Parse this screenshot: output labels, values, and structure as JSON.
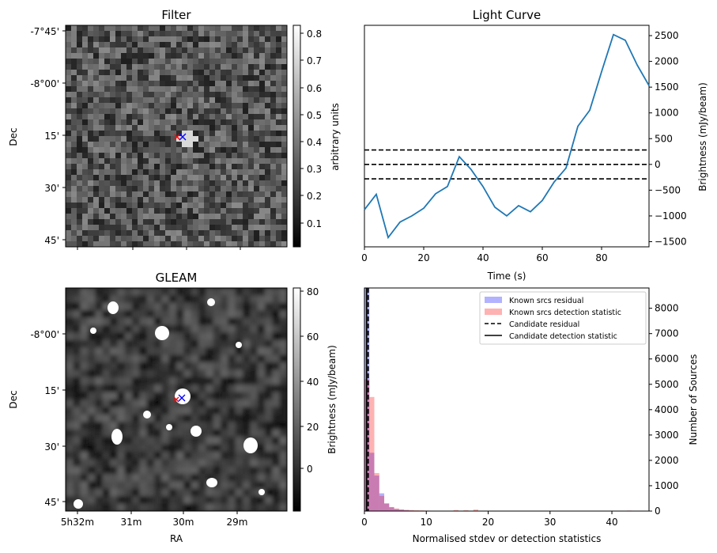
{
  "panels": {
    "filter": {
      "title": "Filter",
      "ylabel": "Dec",
      "yticks": [
        "-7°45'",
        "-8°00'",
        "15'",
        "30'",
        "45'"
      ],
      "colorbar": {
        "label": "arbitrary units",
        "ticks": [
          "0.8",
          "0.7",
          "0.6",
          "0.5",
          "0.4",
          "0.3",
          "0.2",
          "0.1"
        ],
        "range": [
          0.02,
          0.83
        ]
      },
      "markers": [
        "red-x",
        "blue-x"
      ]
    },
    "gleam": {
      "title": "GLEAM",
      "ylabel": "Dec",
      "xlabel": "RA",
      "yticks": [
        "-8°00'",
        "15'",
        "30'",
        "45'"
      ],
      "xticks": [
        "5h32m",
        "31m",
        "30m",
        "29m"
      ],
      "colorbar": {
        "label": "Brightness (mJy/beam)",
        "ticks": [
          "80",
          "60",
          "40",
          "20",
          "0"
        ],
        "range": [
          -18,
          81
        ]
      },
      "markers": [
        "red-x",
        "blue-x"
      ]
    }
  },
  "chart_data": [
    {
      "type": "line",
      "title": "Light Curve",
      "xlabel": "Time (s)",
      "ylabel": "Brightness (mJy/beam)",
      "xlim": [
        0,
        96
      ],
      "ylim": [
        -1600,
        2700
      ],
      "xticks": [
        0,
        20,
        40,
        60,
        80
      ],
      "yticks": [
        -1500,
        -1000,
        -500,
        0,
        500,
        1000,
        1500,
        2000,
        2500
      ],
      "color": "#1f77b4",
      "series": [
        {
          "x": [
            0,
            4,
            8,
            12,
            16,
            20,
            24,
            28,
            32,
            36,
            40,
            44,
            48,
            52,
            56,
            60,
            64,
            68,
            72,
            76,
            80,
            84,
            88,
            92,
            96
          ],
          "y": [
            -880,
            -580,
            -1420,
            -1120,
            -1000,
            -850,
            -570,
            -430,
            150,
            -100,
            -430,
            -830,
            -1000,
            -800,
            -920,
            -700,
            -340,
            -70,
            740,
            1050,
            1800,
            2520,
            2410,
            1930,
            1530
          ]
        }
      ],
      "hlines": [
        280,
        0,
        -280
      ],
      "hline_style": "dashed"
    },
    {
      "type": "histogram",
      "xlabel": "Normalised stdev or detection statistics",
      "ylabel": "Number of Sources",
      "xlim": [
        0,
        46
      ],
      "ylim": [
        0,
        8800
      ],
      "xticks": [
        0,
        10,
        20,
        30,
        40
      ],
      "yticks": [
        0,
        1000,
        2000,
        3000,
        4000,
        5000,
        6000,
        7000,
        8000
      ],
      "bin_width": 0.8,
      "series": [
        {
          "name": "Known srcs residual",
          "color": "#0000ff",
          "alpha": 0.3,
          "bins_start": [
            0,
            0.8,
            1.6,
            2.4,
            3.2,
            4.0,
            4.8,
            5.6,
            6.4,
            7.2,
            8.0
          ],
          "counts": [
            8800,
            2300,
            1400,
            700,
            300,
            150,
            80,
            50,
            30,
            20,
            10
          ]
        },
        {
          "name": "Known srcs detection statistic",
          "color": "#ff0000",
          "alpha": 0.3,
          "bins_start": [
            0,
            0.8,
            1.6,
            2.4,
            3.2,
            4.0,
            4.8,
            5.6,
            6.4,
            7.2,
            8.0,
            8.8,
            9.6,
            10.4,
            11.2,
            12.0,
            14.4,
            16.0,
            17.6,
            42.4
          ],
          "counts": [
            5200,
            4500,
            1500,
            600,
            300,
            160,
            100,
            70,
            50,
            40,
            30,
            25,
            20,
            15,
            12,
            10,
            40,
            30,
            60,
            20
          ]
        }
      ],
      "vlines": [
        {
          "name": "Candidate residual",
          "x": 0.6,
          "style": "dashed"
        },
        {
          "name": "Candidate detection statistic",
          "x": 0.35,
          "style": "solid"
        }
      ],
      "legend": "top-right"
    }
  ]
}
